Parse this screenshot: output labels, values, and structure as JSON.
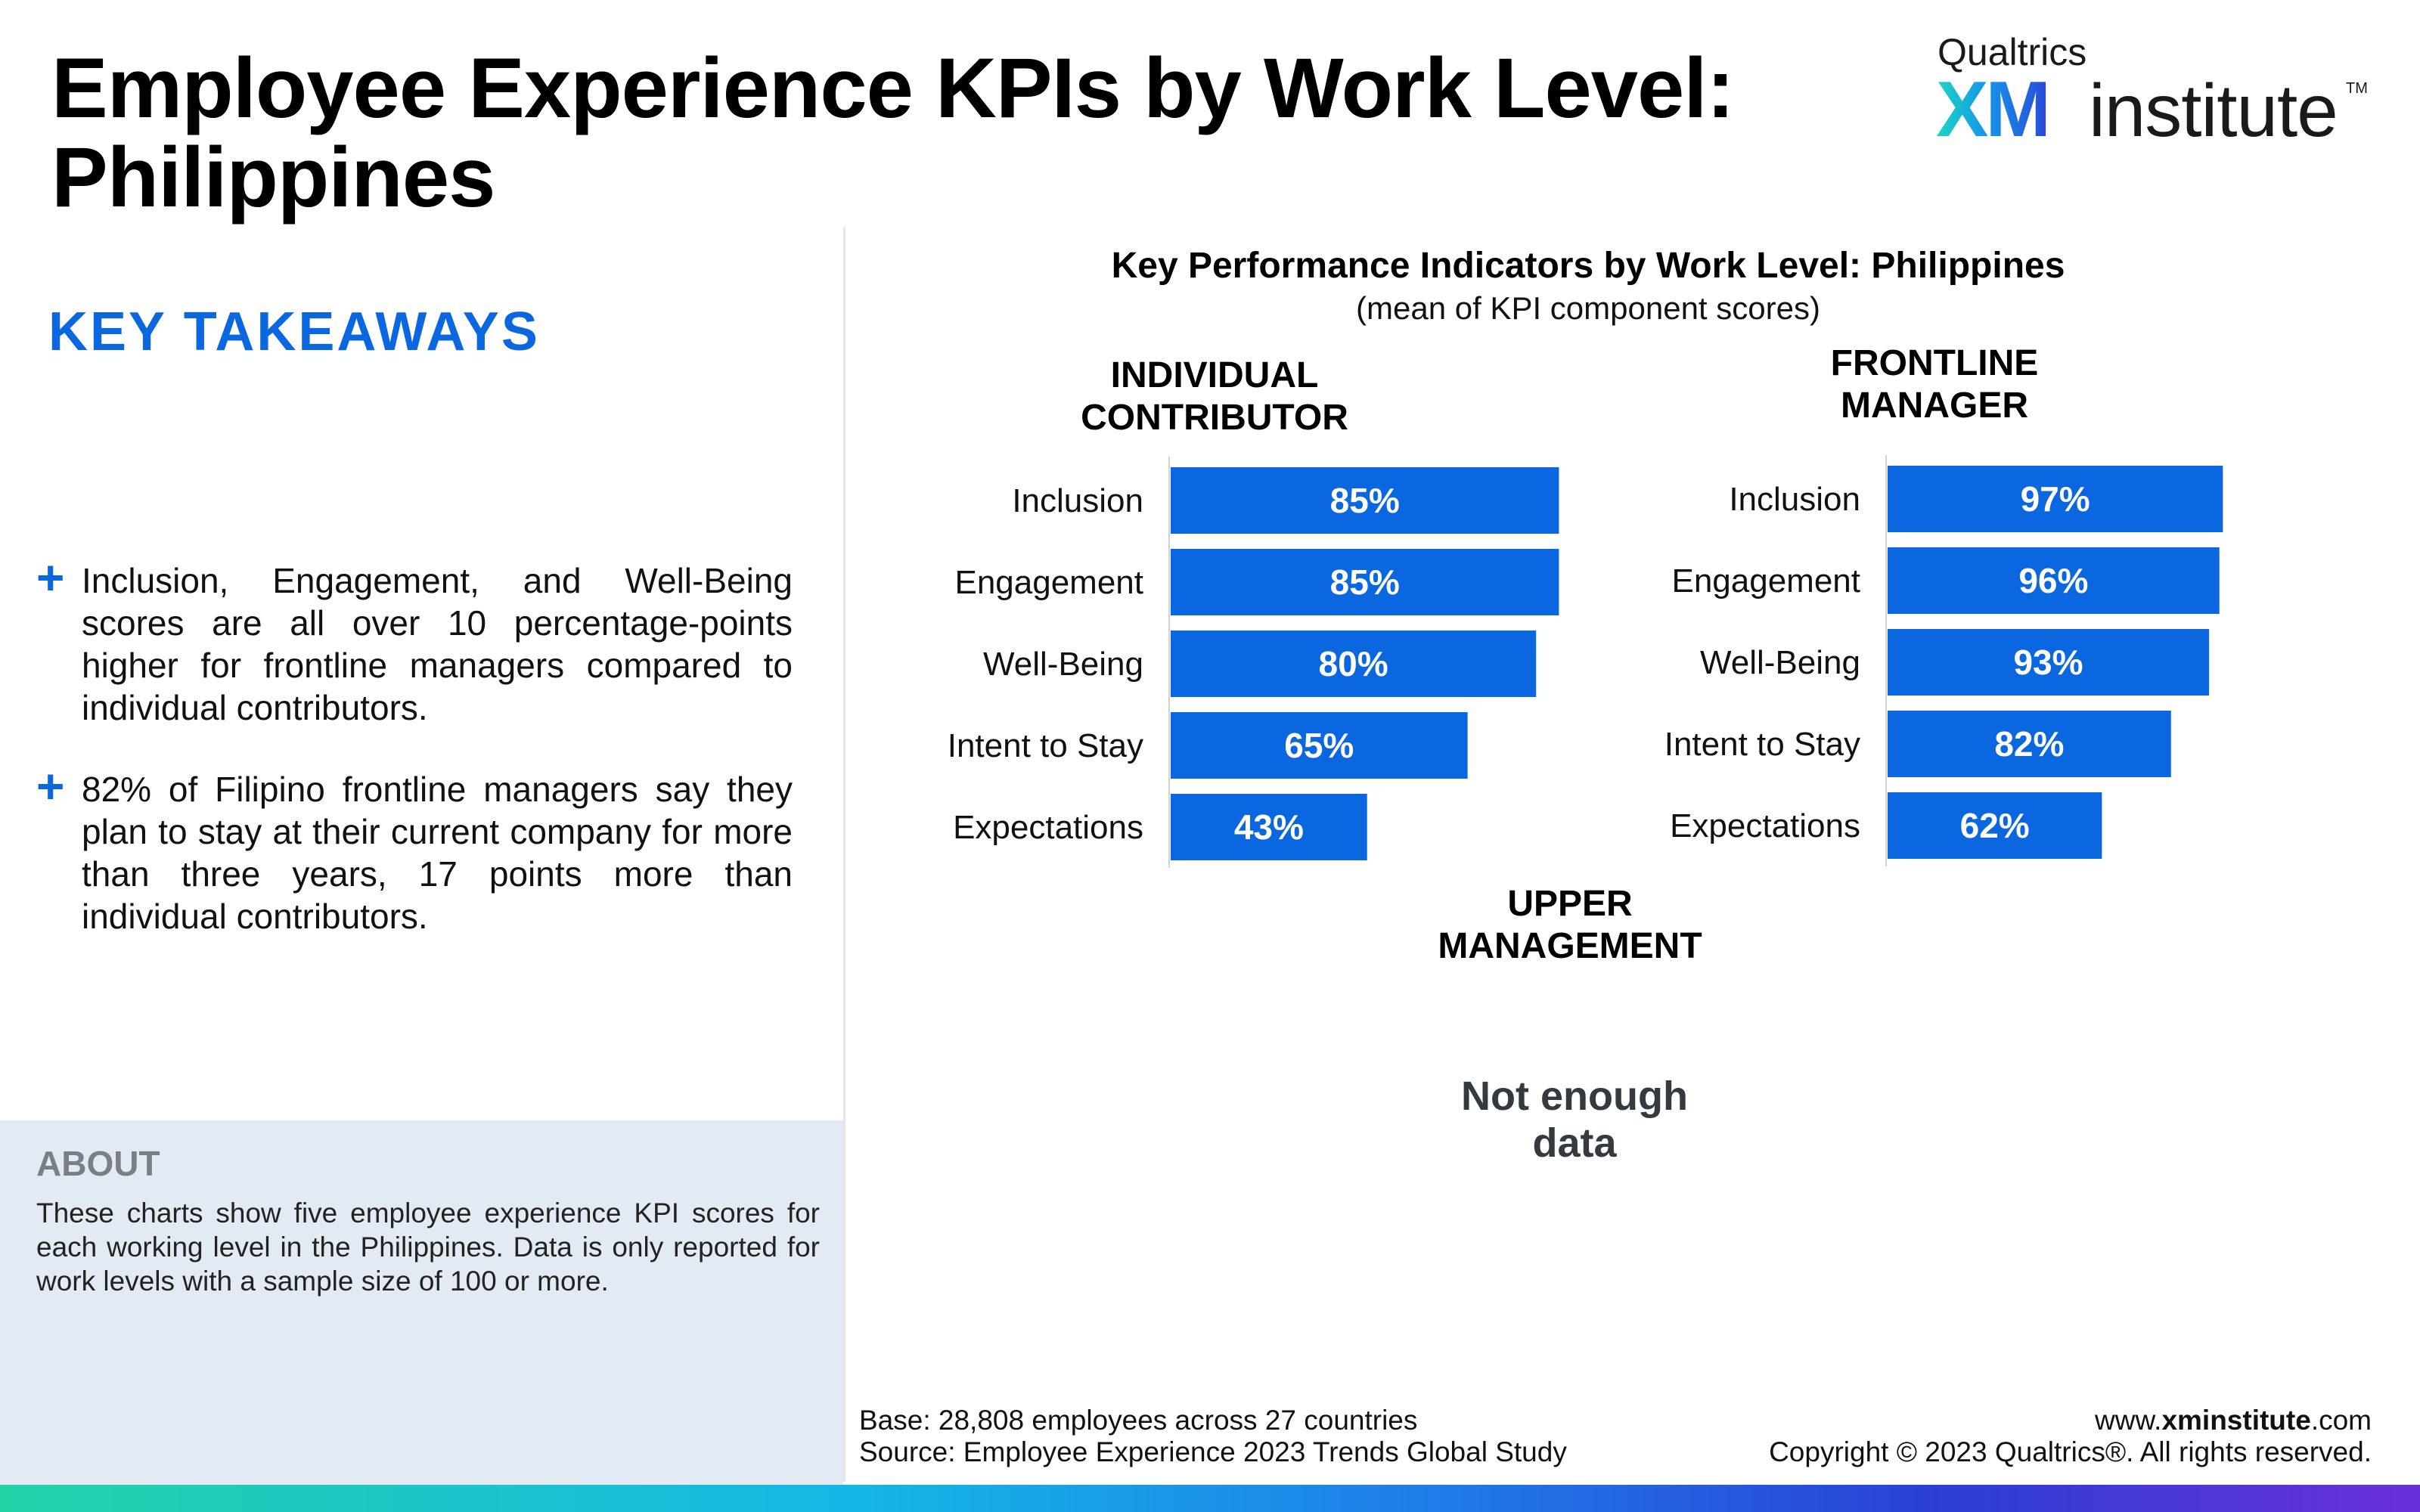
{
  "header": {
    "title_line1": "Employee Experience KPIs by Work Level:",
    "title_line2": "Philippines"
  },
  "logo": {
    "brand": "Qualtrics",
    "xm": "XM",
    "institute": "institute",
    "tm": "TM"
  },
  "takeaways": {
    "heading": "KEY TAKEAWAYS",
    "plus_symbol": "+",
    "items": [
      "Inclusion, Engagement, and Well-Being scores are all over 10 percentage-points higher for frontline managers compared to individual contributors.",
      "82% of Filipino frontline managers say they plan to stay at their current company for more than three years, 17 points more than individual contributors."
    ]
  },
  "about": {
    "heading": "ABOUT",
    "text": "These charts show five employee experience KPI scores for each working level in the Philippines. Data is only reported for work levels with a sample size of 100 or more."
  },
  "footer": {
    "base": "Base: 28,808 employees across 27 countries",
    "source": "Source: Employee Experience 2023 Trends Global Study",
    "url_prefix": "www.",
    "url_bold": "xminstitute",
    "url_suffix": ".com",
    "copyright": "Copyright © 2023 Qualtrics®. All rights reserved."
  },
  "colors": {
    "bar": "#0b67e0",
    "accent": "#0b67e0"
  },
  "chart_data": {
    "title": "Key Performance Indicators by Work Level: Philippines",
    "subtitle": "(mean of KPI component scores)",
    "type": "bar",
    "orientation": "horizontal",
    "categories": [
      "Inclusion",
      "Engagement",
      "Well-Being",
      "Intent to Stay",
      "Expectations"
    ],
    "panels": [
      {
        "name_line1": "INDIVIDUAL",
        "name_line2": "CONTRIBUTOR",
        "values": [
          85,
          85,
          80,
          65,
          43
        ],
        "labels": [
          "85%",
          "85%",
          "80%",
          "65%",
          "43%"
        ]
      },
      {
        "name_line1": "FRONTLINE",
        "name_line2": "MANAGER",
        "values": [
          97,
          96,
          93,
          82,
          62
        ],
        "labels": [
          "97%",
          "96%",
          "93%",
          "82%",
          "62%"
        ]
      },
      {
        "name_line1": "UPPER",
        "name_line2": "MANAGEMENT",
        "values": [],
        "labels": [],
        "note_line1": "Not enough",
        "note_line2": "data"
      }
    ]
  }
}
